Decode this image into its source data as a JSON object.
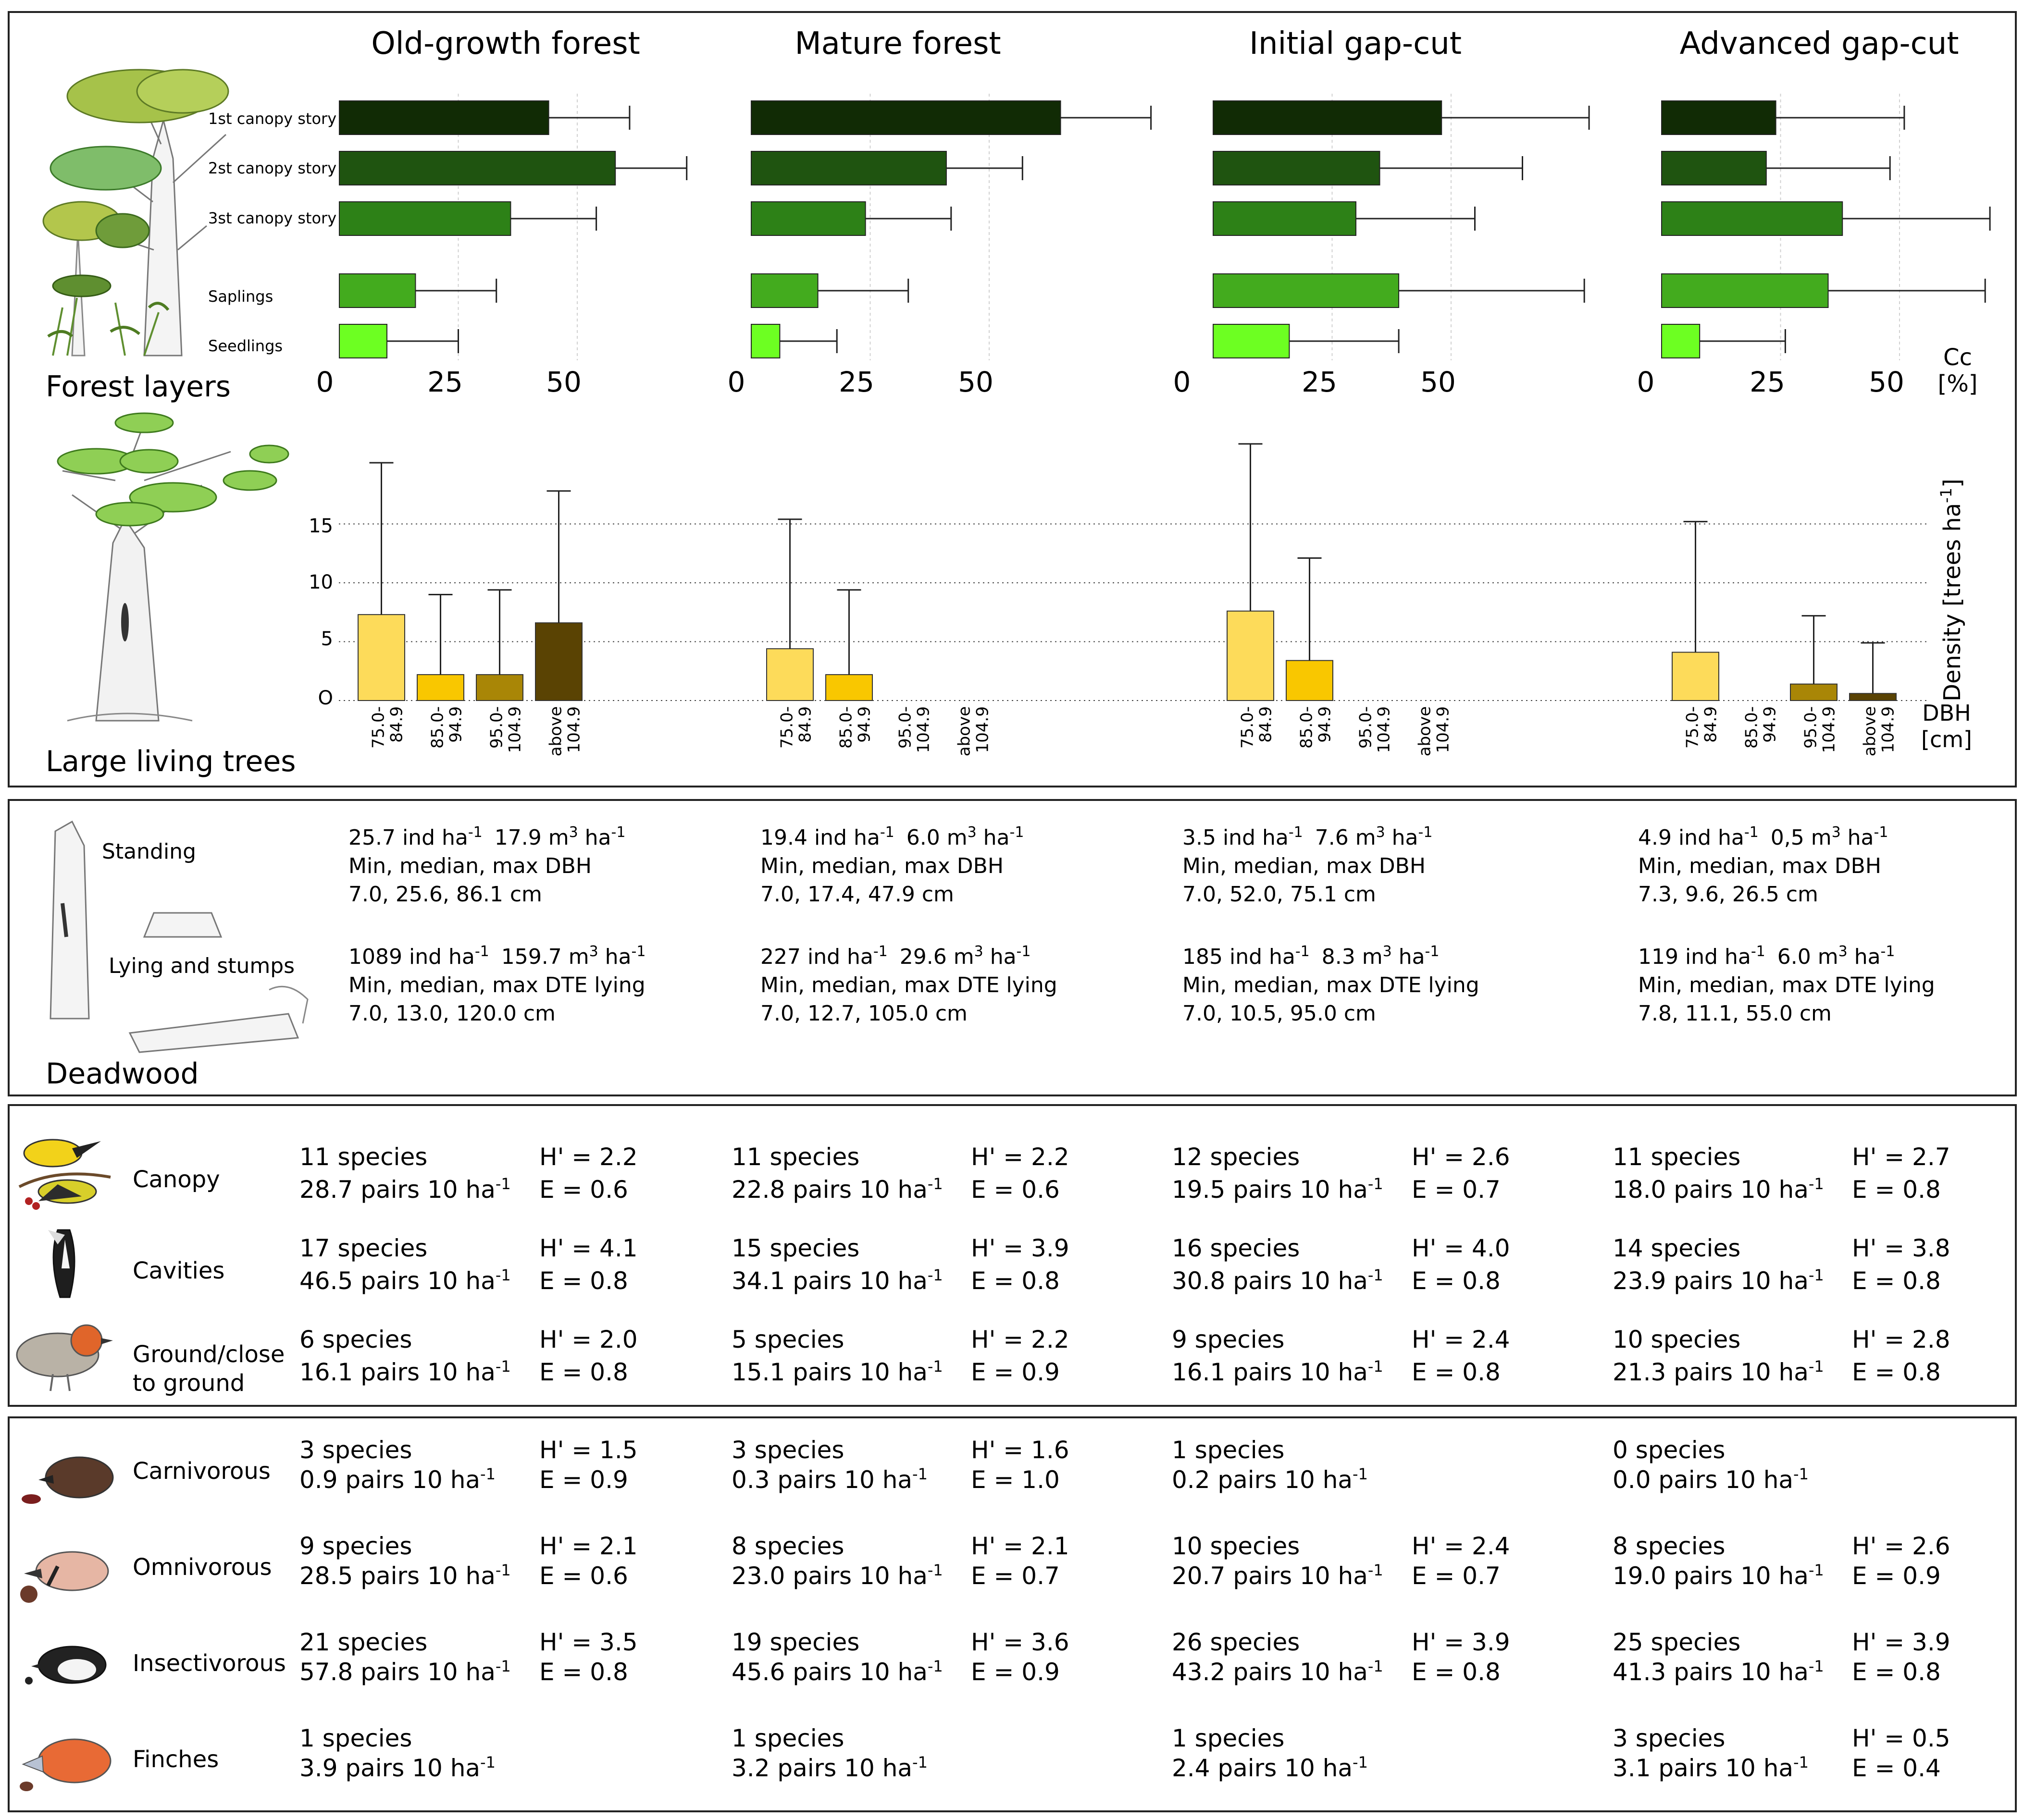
{
  "forests": [
    "Old-growth forest",
    "Mature forest",
    "Initial gap-cut",
    "Advanced gap-cut"
  ],
  "section_titles": {
    "forest_layers": "Forest layers",
    "large_trees": "Large living trees",
    "deadwood": "Deadwood"
  },
  "layer_labels": [
    "1st canopy story",
    "2st canopy story",
    "3st canopy story",
    "Saplings",
    "Seedlings"
  ],
  "layer_colors": [
    "#112b05",
    "#1f5410",
    "#2d8117",
    "#43ab1e",
    "#6dff22"
  ],
  "axis_top": {
    "ticks": [
      "0",
      "25",
      "50"
    ],
    "unit_lines": [
      "Cc",
      "[%]"
    ]
  },
  "chart_data": [
    {
      "type": "bar",
      "panel": "forest-layers",
      "title": "Forest layers",
      "categories": [
        "1st canopy story",
        "2st canopy story",
        "3st canopy story",
        "Saplings",
        "Seedlings"
      ],
      "series": [
        {
          "name": "Old-growth forest",
          "values": [
            44,
            58,
            36,
            16,
            10
          ],
          "err": [
            17,
            15,
            18,
            17,
            15
          ]
        },
        {
          "name": "Mature forest",
          "values": [
            65,
            41,
            24,
            14,
            6
          ],
          "err": [
            19,
            16,
            18,
            19,
            12
          ]
        },
        {
          "name": "Initial gap-cut",
          "values": [
            48,
            35,
            30,
            39,
            16
          ],
          "err": [
            31,
            30,
            25,
            39,
            23
          ]
        },
        {
          "name": "Advanced gap-cut",
          "values": [
            24,
            22,
            38,
            35,
            8
          ],
          "err": [
            27,
            26,
            31,
            33,
            18
          ]
        }
      ],
      "xlim": [
        0,
        70
      ],
      "xticks": [
        0,
        25,
        50
      ],
      "xlabel": "Cc [%]"
    },
    {
      "type": "bar",
      "panel": "large-living-trees",
      "title": "Large living trees",
      "categories": [
        "75.0-84.9",
        "85.0-94.9",
        "95.0-104.9",
        "above 104.9"
      ],
      "series": [
        {
          "name": "Old-growth forest",
          "values": [
            7.3,
            2.2,
            2.2,
            6.6
          ],
          "err": [
            12.9,
            6.8,
            7.2,
            11.2
          ]
        },
        {
          "name": "Mature forest",
          "values": [
            4.4,
            2.2,
            0,
            0
          ],
          "err": [
            11.0,
            7.2,
            0,
            0
          ]
        },
        {
          "name": "Initial gap-cut",
          "values": [
            7.6,
            3.4,
            0,
            0
          ],
          "err": [
            14.2,
            8.7,
            0,
            0
          ]
        },
        {
          "name": "Advanced gap-cut",
          "values": [
            4.1,
            0,
            1.4,
            0.6
          ],
          "err": [
            11.1,
            0,
            5.8,
            4.3
          ]
        }
      ],
      "category_colors": [
        "#fddb5a",
        "#f9c700",
        "#a98606",
        "#5a4303"
      ],
      "ylim": [
        0,
        20
      ],
      "yticks": [
        0,
        5,
        10,
        15
      ],
      "ylabel": "Density [trees ha-1]",
      "xlabel": "DBH [cm]"
    }
  ],
  "large_trees_labels": {
    "ytick_labels": [
      "O",
      "5",
      "10",
      "15"
    ],
    "ylabel_main": "Density [trees ha",
    "ylabel_sup": "-1",
    "ylabel_end": "]",
    "xunit_lines": [
      "DBH",
      "[cm]"
    ],
    "dbh_lines": [
      [
        "75.0-",
        "84.9"
      ],
      [
        "85.0-",
        "94.9"
      ],
      [
        "95.0-",
        "104.9"
      ],
      [
        "above",
        "104.9"
      ]
    ]
  },
  "deadwood": {
    "standing_label": "Standing",
    "lying_label": "Lying and stumps",
    "sites": [
      {
        "standing": {
          "ind": "25.7 ind ha",
          "vol": "17.9 m",
          "line2": "Min, median, max DBH",
          "line3": "7.0, 25.6, 86.1 cm"
        },
        "lying": {
          "ind": "1089 ind ha",
          "vol": "159.7 m",
          "line2": "Min, median, max DTE lying",
          "line3": "7.0, 13.0, 120.0 cm"
        }
      },
      {
        "standing": {
          "ind": "19.4 ind ha",
          "vol": "6.0 m",
          "line2": "Min, median, max DBH",
          "line3": "7.0, 17.4, 47.9 cm"
        },
        "lying": {
          "ind": "227 ind ha",
          "vol": "29.6 m",
          "line2": "Min, median, max DTE lying",
          "line3": "7.0, 12.7, 105.0 cm"
        }
      },
      {
        "standing": {
          "ind": "3.5 ind ha",
          "vol": "7.6 m",
          "line2": "Min, median, max DBH",
          "line3": "7.0, 52.0, 75.1 cm"
        },
        "lying": {
          "ind": "185 ind ha",
          "vol": "8.3 m",
          "line2": "Min, median, max DTE lying",
          "line3": "7.0, 10.5, 95.0 cm"
        }
      },
      {
        "standing": {
          "ind": "4.9 ind ha",
          "vol": "0,5 m",
          "line2": "Min, median, max DBH",
          "line3": "7.3, 9.6, 26.5 cm"
        },
        "lying": {
          "ind": "119 ind ha",
          "vol": "6.0 m",
          "line2": "Min, median, max DTE lying",
          "line3": "7.8, 11.1, 55.0 cm"
        }
      }
    ]
  },
  "nesting": [
    {
      "label_lines": [
        "Canopy"
      ],
      "icon": "golden-oriole-icon",
      "cells": [
        {
          "species": "11 species",
          "pairs": "28.7 pairs 10 ha",
          "H": "H' = 2.2",
          "E": "E = 0.6"
        },
        {
          "species": "11 species",
          "pairs": "22.8 pairs 10 ha",
          "H": "H' = 2.2",
          "E": "E = 0.6"
        },
        {
          "species": "12 species",
          "pairs": "19.5 pairs 10 ha",
          "H": "H' = 2.6",
          "E": "E = 0.7"
        },
        {
          "species": "11 species",
          "pairs": "18.0 pairs 10 ha",
          "H": "H' = 2.7",
          "E": "E = 0.8"
        }
      ]
    },
    {
      "label_lines": [
        "Cavities"
      ],
      "icon": "woodpecker-icon",
      "cells": [
        {
          "species": "17 species",
          "pairs": "46.5 pairs 10 ha",
          "H": "H' = 4.1",
          "E": "E = 0.8"
        },
        {
          "species": "15 species",
          "pairs": "34.1 pairs 10 ha",
          "H": "H' = 3.9",
          "E": "E = 0.8"
        },
        {
          "species": "16 species",
          "pairs": "30.8 pairs 10 ha",
          "H": "H' = 4.0",
          "E": "E = 0.8"
        },
        {
          "species": "14 species",
          "pairs": "23.9 pairs 10 ha",
          "H": "H' = 3.8",
          "E": "E = 0.8"
        }
      ]
    },
    {
      "label_lines": [
        "Ground/close",
        "to ground"
      ],
      "icon": "robin-icon",
      "cells": [
        {
          "species": "6 species",
          "pairs": "16.1 pairs 10 ha",
          "H": "H' = 2.0",
          "E": "E = 0.8"
        },
        {
          "species": "5 species",
          "pairs": "15.1 pairs 10 ha",
          "H": "H' = 2.2",
          "E": "E = 0.9"
        },
        {
          "species": "9 species",
          "pairs": "16.1 pairs 10 ha",
          "H": "H' = 2.4",
          "E": "E = 0.8"
        },
        {
          "species": "10 species",
          "pairs": "21.3 pairs 10 ha",
          "H": "H' = 2.8",
          "E": "E = 0.8"
        }
      ]
    }
  ],
  "feeding": [
    {
      "label_lines": [
        "Carnivorous"
      ],
      "icon": "shrike-head-icon",
      "cells": [
        {
          "species": "3 species",
          "pairs": "0.9 pairs 10 ha",
          "H": "H' = 1.5",
          "E": "E = 0.9"
        },
        {
          "species": "3 species",
          "pairs": "0.3 pairs 10 ha",
          "H": "H' = 1.6",
          "E": "E = 1.0"
        },
        {
          "species": "1 species",
          "pairs": "0.2 pairs 10 ha",
          "H": "",
          "E": ""
        },
        {
          "species": "0 species",
          "pairs": "0.0 pairs 10 ha",
          "H": "",
          "E": ""
        }
      ]
    },
    {
      "label_lines": [
        "Omnivorous"
      ],
      "icon": "jay-head-icon",
      "cells": [
        {
          "species": "9 species",
          "pairs": "28.5 pairs 10 ha",
          "H": "H' = 2.1",
          "E": "E = 0.6"
        },
        {
          "species": "8 species",
          "pairs": "23.0 pairs 10 ha",
          "H": "H' = 2.1",
          "E": "E = 0.7"
        },
        {
          "species": "10 species",
          "pairs": "20.7 pairs 10 ha",
          "H": "H' = 2.4",
          "E": "E = 0.7"
        },
        {
          "species": "8 species",
          "pairs": "19.0 pairs 10 ha",
          "H": "H' = 2.6",
          "E": "E = 0.9"
        }
      ]
    },
    {
      "label_lines": [
        "Insectivorous"
      ],
      "icon": "tit-head-icon",
      "cells": [
        {
          "species": "21 species",
          "pairs": "57.8 pairs 10 ha",
          "H": "H' = 3.5",
          "E": "E = 0.8"
        },
        {
          "species": "19 species",
          "pairs": "45.6 pairs 10 ha",
          "H": "H' = 3.6",
          "E": "E = 0.9"
        },
        {
          "species": "26 species",
          "pairs": "43.2 pairs 10 ha",
          "H": "H' = 3.9",
          "E": "E = 0.8"
        },
        {
          "species": "25 species",
          "pairs": "41.3 pairs 10 ha",
          "H": "H' = 3.9",
          "E": "E = 0.8"
        }
      ]
    },
    {
      "label_lines": [
        "Finches"
      ],
      "icon": "hawfinch-head-icon",
      "cells": [
        {
          "species": "1 species",
          "pairs": "3.9 pairs 10 ha",
          "H": "",
          "E": ""
        },
        {
          "species": "1 species",
          "pairs": "3.2 pairs 10 ha",
          "H": "",
          "E": ""
        },
        {
          "species": "1 species",
          "pairs": "2.4 pairs 10 ha",
          "H": "",
          "E": ""
        },
        {
          "species": "3 species",
          "pairs": "3.1 pairs 10 ha",
          "H": "H' = 0.5",
          "E": "E = 0.4"
        }
      ]
    }
  ],
  "superscripts": {
    "per_ha": "-1",
    "cube": "3",
    "ha_word": " ha",
    "ind_sup": "-1",
    "vol_sup": "-1"
  }
}
